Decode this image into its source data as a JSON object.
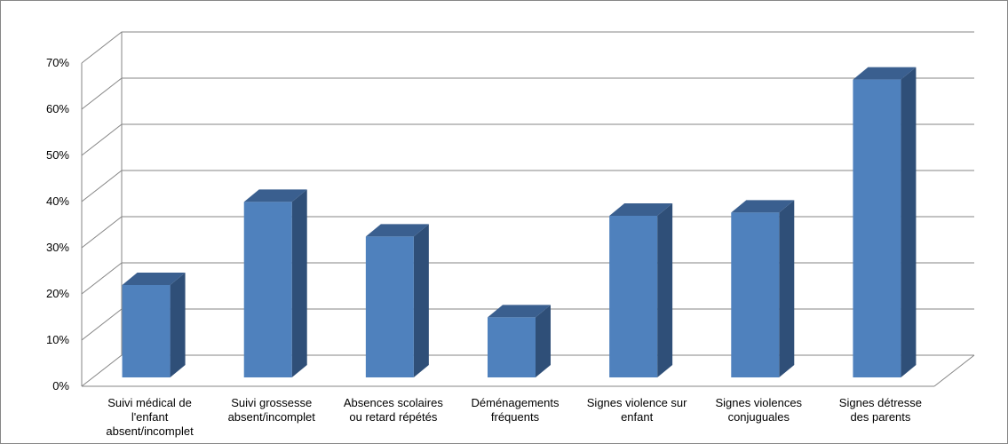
{
  "chart_data": {
    "type": "bar",
    "style": "3d-column",
    "title": "",
    "xlabel": "",
    "ylabel": "",
    "ylim": [
      0,
      0.7
    ],
    "yticks": [
      "0%",
      "10%",
      "20%",
      "30%",
      "40%",
      "50%",
      "60%",
      "70%"
    ],
    "grid": true,
    "legend": "none",
    "categories": [
      [
        "Suivi médical de",
        "l'enfant",
        "absent/incomplet"
      ],
      [
        "Suivi grossesse",
        "absent/incomplet"
      ],
      [
        "Absences scolaires",
        "ou retard répétés"
      ],
      [
        "Déménagements",
        "fréquents"
      ],
      [
        "Signes violence sur",
        "enfant"
      ],
      [
        "Signes violences",
        "conjuguales"
      ],
      [
        "Signes détresse",
        "des parents"
      ]
    ],
    "series": [
      {
        "values": [
          0.2,
          0.38,
          0.305,
          0.13,
          0.35,
          0.357,
          0.645
        ]
      }
    ],
    "colors": {
      "front": "#4F81BD",
      "top": "#3A5F8F",
      "side": "#2F4F78",
      "grid": "#868686"
    }
  }
}
